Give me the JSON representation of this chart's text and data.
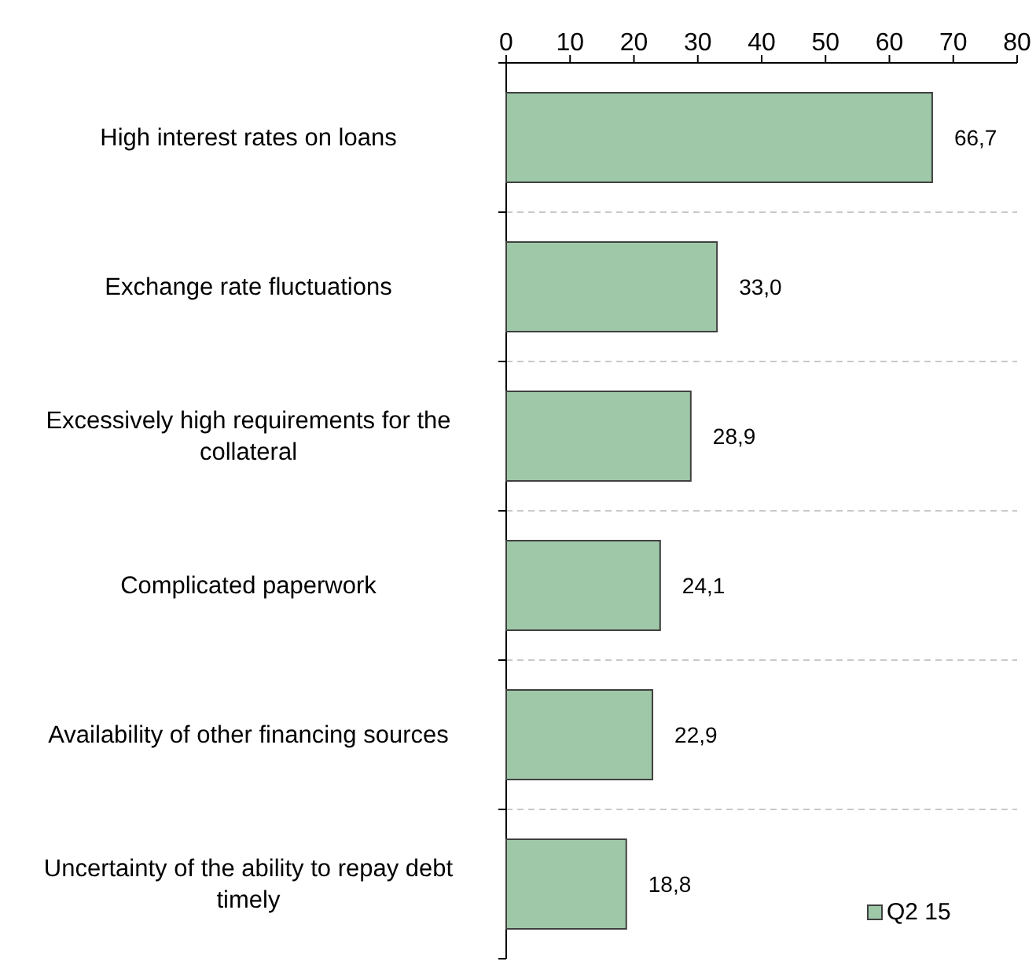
{
  "chart_data": {
    "type": "bar",
    "orientation": "horizontal",
    "categories": [
      "High interest rates on loans",
      "Exchange rate fluctuations",
      "Excessively high requirements for the collateral",
      "Complicated paperwork",
      "Availability of other  financing sources",
      "Uncertainty of the ability to repay debt timely"
    ],
    "series": [
      {
        "name": "Q2 15",
        "color": "#9fc8a8",
        "values": [
          66.7,
          33.0,
          28.9,
          24.1,
          22.9,
          18.8
        ],
        "value_labels": [
          "66,7",
          "33,0",
          "28,9",
          "24,1",
          "22,9",
          "18,8"
        ]
      }
    ],
    "xlim": [
      0,
      80
    ],
    "xticks": [
      0,
      10,
      20,
      30,
      40,
      50,
      60,
      70,
      80
    ],
    "grid": "y",
    "legend": "bottom right"
  }
}
